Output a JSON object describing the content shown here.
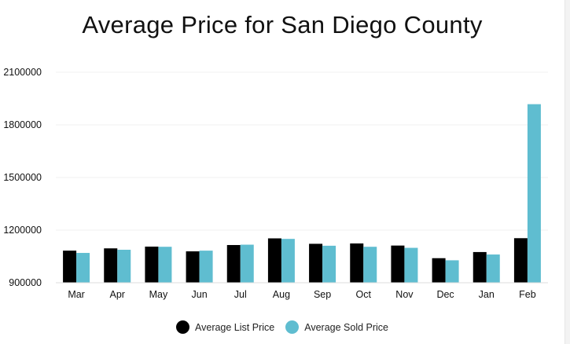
{
  "chart_data": {
    "type": "bar",
    "title": "Average Price for San Diego County",
    "xlabel": "",
    "ylabel": "",
    "categories": [
      "Mar",
      "Apr",
      "May",
      "Jun",
      "Jul",
      "Aug",
      "Sep",
      "Oct",
      "Nov",
      "Dec",
      "Jan",
      "Feb"
    ],
    "series": [
      {
        "name": "Average List Price",
        "color": "#000000",
        "values": [
          1083000,
          1096000,
          1106000,
          1079000,
          1115000,
          1153000,
          1122000,
          1124000,
          1112000,
          1040000,
          1075000,
          1154000
        ]
      },
      {
        "name": "Average Sold Price",
        "color": "#5fbdd0",
        "values": [
          1070000,
          1088000,
          1105000,
          1083000,
          1117000,
          1150000,
          1111000,
          1105000,
          1099000,
          1028000,
          1061000,
          1918000
        ]
      }
    ],
    "ylim": [
      900000,
      2100000
    ],
    "yticks": [
      "900000",
      "1200000",
      "1500000",
      "1800000",
      "2100000"
    ],
    "ytick_values": [
      900000,
      1200000,
      1500000,
      1800000,
      2100000
    ],
    "grid": true,
    "legend_position": "bottom"
  }
}
